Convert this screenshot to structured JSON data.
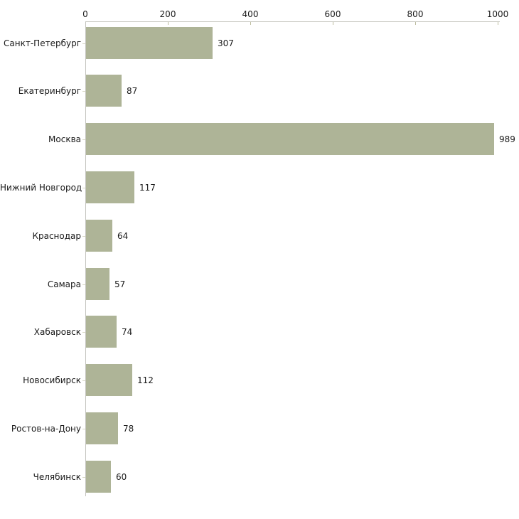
{
  "chart_data": {
    "type": "bar",
    "orientation": "horizontal",
    "title": "",
    "xlabel": "",
    "ylabel": "",
    "categories": [
      "Санкт-Петербург",
      "Екатеринбург",
      "Москва",
      "Нижний Новгород",
      "Краснодар",
      "Самара",
      "Хабаровск",
      "Новосибирск",
      "Ростов-на-Дону",
      "Челябинск"
    ],
    "values": [
      307,
      87,
      989,
      117,
      64,
      57,
      74,
      112,
      78,
      60
    ],
    "value_labels": [
      "307",
      "87",
      "989",
      "117",
      "64",
      "57",
      "74",
      "112",
      "78",
      "60"
    ],
    "xlim": [
      0,
      1000
    ],
    "x_ticks": [
      0,
      200,
      400,
      600,
      800,
      1000
    ],
    "x_tick_labels": [
      "0",
      "200",
      "400",
      "600",
      "800",
      "1000"
    ],
    "axis_position": "top",
    "grid": false,
    "legend": null,
    "bar_color": "#aeb497",
    "axis_color": "#c9c9c2",
    "tick_color": "#bcbc9e",
    "text_color": "#1a1a1a",
    "background_color": "#ffffff"
  }
}
